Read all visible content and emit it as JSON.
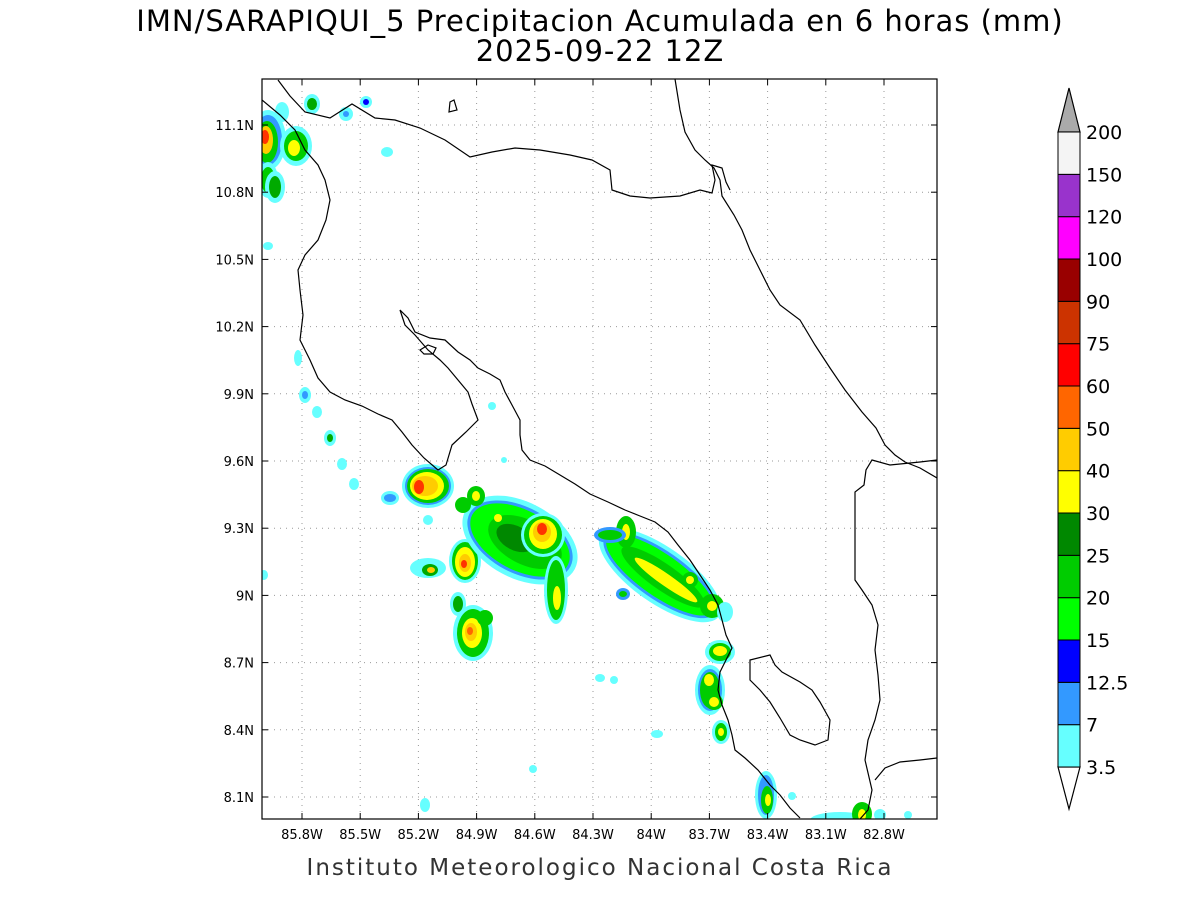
{
  "title": {
    "line1": "IMN/SARAPIQUI_5 Precipitacion Acumulada en 6 horas (mm)",
    "line2": "2025-09-22 12Z"
  },
  "footer": "Instituto Meteorologico Nacional Costa Rica",
  "axes": {
    "lon_labels": [
      "85.8W",
      "85.5W",
      "85.2W",
      "84.9W",
      "84.6W",
      "84.3W",
      "84W",
      "83.7W",
      "83.4W",
      "83.1W",
      "82.8W"
    ],
    "lat_labels": [
      "11.1N",
      "10.8N",
      "10.5N",
      "10.2N",
      "9.9N",
      "9.6N",
      "9.3N",
      "9N",
      "8.7N",
      "8.4N",
      "8.1N"
    ],
    "grid": "dotted"
  },
  "colorbar": {
    "labels": [
      "3.5",
      "7",
      "12.5",
      "15",
      "20",
      "25",
      "30",
      "40",
      "50",
      "60",
      "75",
      "90",
      "100",
      "120",
      "150",
      "200"
    ],
    "colors": [
      "#ffffff",
      "#66ffff",
      "#3399ff",
      "#0000ff",
      "#00ff00",
      "#00cc00",
      "#008800",
      "#ffff00",
      "#ffcc00",
      "#ff6600",
      "#ff0000",
      "#cc3300",
      "#990000",
      "#ff00ff",
      "#9933cc",
      "#f4f4f4",
      "#aaaaaa"
    ]
  }
}
